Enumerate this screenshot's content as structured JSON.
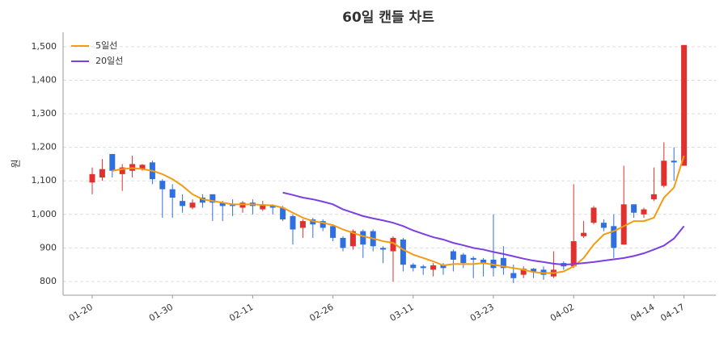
{
  "chart_data": {
    "type": "candlestick",
    "title": "60일 캔들 차트",
    "y_label": "원",
    "categories": [
      "01-20",
      null,
      null,
      null,
      null,
      null,
      null,
      null,
      "01-30",
      null,
      null,
      null,
      null,
      null,
      null,
      null,
      "02-11",
      null,
      null,
      null,
      null,
      null,
      null,
      null,
      "02-26",
      null,
      null,
      null,
      null,
      null,
      null,
      null,
      "03-11",
      null,
      null,
      null,
      null,
      null,
      null,
      null,
      "03-23",
      null,
      null,
      null,
      null,
      null,
      null,
      null,
      "04-02",
      null,
      null,
      null,
      null,
      null,
      null,
      null,
      "04-14",
      null,
      null,
      "04-17"
    ],
    "open": [
      1095,
      1110,
      1180,
      1120,
      1130,
      1135,
      1155,
      1100,
      1075,
      1040,
      1020,
      1050,
      1060,
      1035,
      1030,
      1020,
      1035,
      1015,
      1025,
      1020,
      995,
      960,
      985,
      980,
      965,
      930,
      905,
      950,
      950,
      900,
      890,
      925,
      850,
      845,
      835,
      850,
      890,
      880,
      870,
      865,
      865,
      870,
      825,
      820,
      838,
      835,
      815,
      855,
      845,
      935,
      975,
      975,
      965,
      910,
      1030,
      1000,
      1045,
      1085,
      1160,
      1145
    ],
    "high": [
      1140,
      1165,
      1180,
      1150,
      1175,
      1150,
      1160,
      1105,
      1090,
      1060,
      1045,
      1060,
      1060,
      1040,
      1045,
      1040,
      1045,
      1040,
      1030,
      1025,
      1000,
      985,
      990,
      985,
      970,
      935,
      955,
      955,
      955,
      905,
      935,
      930,
      855,
      850,
      855,
      855,
      895,
      885,
      875,
      870,
      1000,
      905,
      850,
      845,
      840,
      845,
      890,
      860,
      1090,
      980,
      1025,
      985,
      1000,
      1145,
      1030,
      1020,
      1140,
      1215,
      1200,
      1505
    ],
    "low": [
      1060,
      1100,
      1110,
      1070,
      1110,
      1130,
      1090,
      990,
      990,
      1005,
      1015,
      1020,
      980,
      980,
      995,
      1005,
      1000,
      1010,
      1000,
      980,
      910,
      930,
      930,
      950,
      920,
      890,
      895,
      870,
      890,
      855,
      800,
      830,
      830,
      820,
      815,
      820,
      830,
      840,
      810,
      815,
      815,
      820,
      795,
      810,
      810,
      805,
      810,
      835,
      840,
      930,
      970,
      950,
      870,
      910,
      990,
      990,
      1040,
      1080,
      1100,
      1145
    ],
    "close": [
      1120,
      1135,
      1130,
      1140,
      1150,
      1148,
      1105,
      1075,
      1050,
      1025,
      1035,
      1035,
      1035,
      1025,
      1025,
      1035,
      1025,
      1030,
      1020,
      985,
      955,
      980,
      970,
      960,
      930,
      900,
      950,
      910,
      905,
      895,
      930,
      850,
      840,
      840,
      848,
      840,
      865,
      855,
      865,
      855,
      840,
      840,
      810,
      838,
      830,
      820,
      835,
      845,
      920,
      945,
      1020,
      960,
      900,
      1030,
      1005,
      1015,
      1060,
      1160,
      1155,
      1505
    ],
    "up_color": "#e0312f",
    "down_color": "#2f6fe0",
    "lines": [
      {
        "name": "5일선",
        "color": "#f39c12",
        "values": [
          null,
          null,
          1130,
          1135,
          1138,
          1135,
          1130,
          1120,
          1105,
          1085,
          1060,
          1045,
          1040,
          1035,
          1030,
          1030,
          1030,
          1028,
          1027,
          1020,
          1005,
          990,
          980,
          975,
          968,
          955,
          945,
          935,
          928,
          920,
          915,
          895,
          880,
          870,
          860,
          848,
          852,
          852,
          852,
          855,
          850,
          845,
          840,
          835,
          828,
          825,
          825,
          830,
          845,
          870,
          910,
          940,
          950,
          965,
          980,
          980,
          990,
          1050,
          1080,
          1175
        ]
      },
      {
        "name": "20일선",
        "color": "#7b3fe4",
        "values": [
          null,
          null,
          null,
          null,
          null,
          null,
          null,
          null,
          null,
          null,
          null,
          null,
          null,
          null,
          null,
          null,
          null,
          null,
          null,
          1065,
          1058,
          1050,
          1045,
          1038,
          1030,
          1015,
          1005,
          995,
          988,
          982,
          975,
          965,
          952,
          942,
          932,
          925,
          915,
          908,
          900,
          895,
          888,
          882,
          875,
          868,
          862,
          858,
          853,
          850,
          852,
          855,
          858,
          862,
          866,
          870,
          876,
          884,
          895,
          907,
          928,
          965
        ]
      }
    ],
    "ylim": [
      759,
      1543
    ],
    "yticks": [
      800,
      900,
      {
        "value": 1000,
        "label": "1,000"
      },
      {
        "value": 1100,
        "label": "1,100"
      },
      {
        "value": 1200,
        "label": "1,200"
      },
      {
        "value": 1300,
        "label": "1,300"
      },
      {
        "value": 1400,
        "label": "1,400"
      },
      {
        "value": 1500,
        "label": "1,500"
      }
    ],
    "grid": true,
    "legend": "top-left"
  }
}
